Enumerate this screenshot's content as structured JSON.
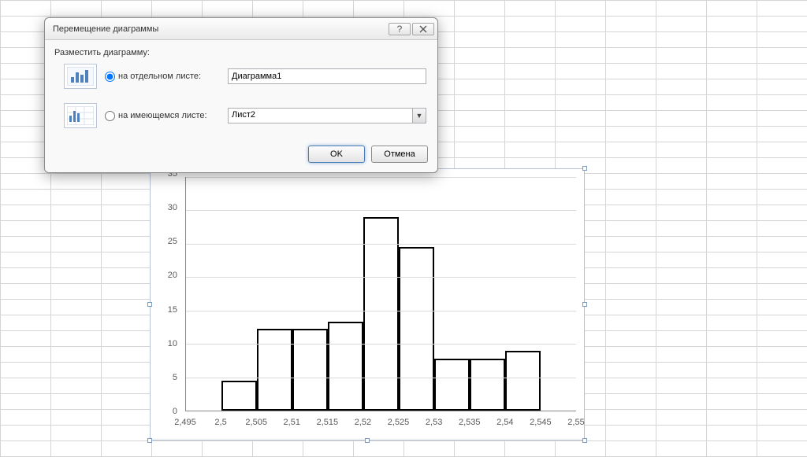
{
  "dialog": {
    "title": "Перемещение диаграммы",
    "group_label": "Разместить диаграмму:",
    "option1": {
      "label": "на отдельном листе:",
      "value": "Диаграмма1",
      "selected": true
    },
    "option2": {
      "label": "на имеющемся листе:",
      "value": "Лист2",
      "selected": false
    },
    "ok_label": "OK",
    "cancel_label": "Отмена"
  },
  "chart": {
    "type": "histogram",
    "background_color": "#ffffff",
    "border_color": "#b6c4d6",
    "grid_color": "#d9d9d9",
    "axis_color": "#888888",
    "bar_border_color": "#000000",
    "bar_fill_color": "#ffffff",
    "bar_border_width": 2,
    "label_fontsize": 11,
    "label_color": "#595959",
    "y": {
      "min": 0,
      "max": 35,
      "step": 5,
      "ticks": [
        0,
        5,
        10,
        15,
        20,
        25,
        30,
        35
      ]
    },
    "x": {
      "min": 2.495,
      "max": 2.55,
      "step": 0.005,
      "ticks": [
        "2,495",
        "2,5",
        "2,505",
        "2,51",
        "2,515",
        "2,52",
        "2,525",
        "2,53",
        "2,535",
        "2,54",
        "2,545",
        "2,55"
      ]
    },
    "bars": [
      {
        "x0": 2.5,
        "x1": 2.505,
        "value": 4.5
      },
      {
        "x0": 2.505,
        "x1": 2.51,
        "value": 12.2
      },
      {
        "x0": 2.51,
        "x1": 2.515,
        "value": 12.2
      },
      {
        "x0": 2.515,
        "x1": 2.52,
        "value": 13.3
      },
      {
        "x0": 2.52,
        "x1": 2.525,
        "value": 29
      },
      {
        "x0": 2.525,
        "x1": 2.53,
        "value": 24.5
      },
      {
        "x0": 2.53,
        "x1": 2.535,
        "value": 7.8
      },
      {
        "x0": 2.535,
        "x1": 2.54,
        "value": 7.8
      },
      {
        "x0": 2.54,
        "x1": 2.545,
        "value": 8.9
      }
    ]
  }
}
